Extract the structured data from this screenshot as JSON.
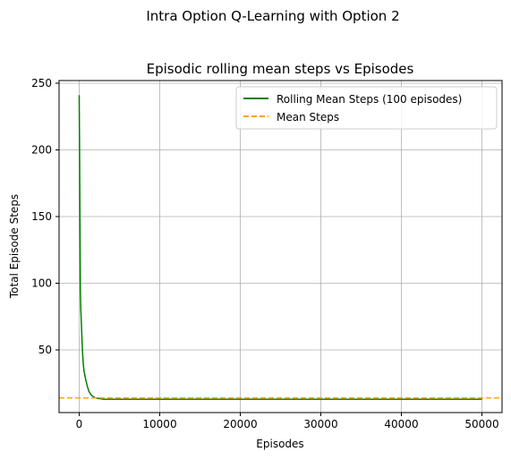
{
  "figure": {
    "suptitle": "Intra Option Q-Learning with Option 2"
  },
  "colors": {
    "series": "#008000",
    "mean_line": "#FFA500",
    "grid": "#b0b0b0",
    "axes": "#000000"
  },
  "chart_data": {
    "type": "line",
    "title": "Episodic rolling mean steps vs Episodes",
    "xlabel": "Episodes",
    "ylabel": "Total Episode Steps",
    "xlim": [
      -2500,
      52500
    ],
    "ylim": [
      3,
      252
    ],
    "xticks": [
      0,
      10000,
      20000,
      30000,
      40000,
      50000
    ],
    "xtick_labels": [
      "0",
      "10000",
      "20000",
      "30000",
      "40000",
      "50000"
    ],
    "yticks": [
      50,
      100,
      150,
      200,
      250
    ],
    "ytick_labels": [
      "50",
      "100",
      "150",
      "200",
      "250"
    ],
    "grid": true,
    "legend_position": "top-right",
    "legend": [
      "Rolling Mean Steps (100 episodes)",
      "Mean Steps"
    ],
    "series": [
      {
        "name": "Rolling Mean Steps (100 episodes)",
        "style": "solid",
        "x": [
          0,
          50,
          100,
          150,
          200,
          300,
          400,
          500,
          600,
          800,
          1000,
          1200,
          1500,
          2000,
          2500,
          3000,
          5000,
          10000,
          15000,
          20000,
          25000,
          30000,
          35000,
          40000,
          45000,
          50000
        ],
        "y": [
          241,
          190,
          140,
          95,
          80,
          65,
          50,
          40,
          34,
          28,
          23,
          19,
          16,
          14,
          13.5,
          13,
          13,
          13,
          13,
          13,
          13,
          13,
          13,
          13,
          13,
          13
        ]
      },
      {
        "name": "Mean Steps",
        "style": "dashed",
        "type": "hline",
        "y": 14
      }
    ]
  }
}
